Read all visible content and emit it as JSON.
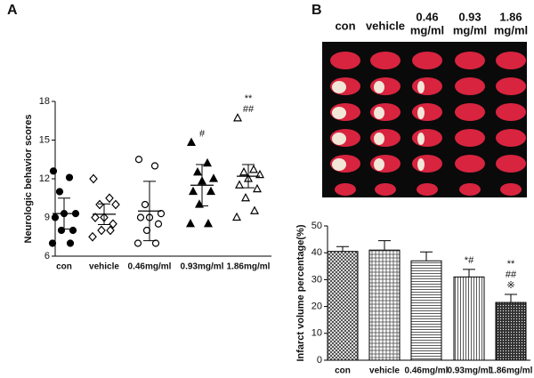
{
  "panel_labels": [
    "A",
    "B"
  ],
  "photo": {
    "column_labels": [
      [
        "con"
      ],
      [
        "vehicle"
      ],
      [
        "0.46",
        "mg/ml"
      ],
      [
        "0.93",
        "mg/ml"
      ],
      [
        "1.86",
        "mg/ml"
      ]
    ]
  },
  "chart_data": [
    {
      "type": "dot-plot",
      "y_label": "Neurologic behavior scores",
      "categories": [
        "con",
        "vehicle",
        "0.46mg/ml",
        "0.93mg/ml",
        "1.86mg/ml"
      ],
      "groups": [
        {
          "marker": "filled-circle",
          "values": [
            12.6,
            12.1,
            11,
            9.3,
            9.3,
            9,
            8,
            8,
            7,
            7
          ],
          "mean": 9.3,
          "sd": 1.2
        },
        {
          "marker": "open-diamond",
          "values": [
            12,
            10.5,
            10,
            10,
            9,
            9,
            8.5,
            8,
            8,
            7.5
          ],
          "mean": 9.25,
          "sd": 0.8
        },
        {
          "marker": "open-circle",
          "values": [
            13.5,
            13,
            10,
            9.3,
            9,
            9,
            8.5,
            8,
            7,
            7
          ],
          "mean": 9.5,
          "sd": 2.3
        },
        {
          "marker": "filled-triangle",
          "values": [
            14.8,
            13.2,
            12.5,
            12,
            11.8,
            11,
            11,
            10,
            8.5,
            8.5
          ],
          "mean": 11.5,
          "sd": 1.6
        },
        {
          "marker": "open-triangle",
          "values": [
            16.7,
            12.7,
            12.5,
            12.3,
            12,
            11.5,
            11.2,
            10.5,
            9.5,
            9
          ],
          "mean": 12.2,
          "sd": 0.9
        }
      ],
      "annotations": [
        null,
        null,
        null,
        [
          "#"
        ],
        [
          "**",
          "##"
        ]
      ],
      "ylim": [
        6,
        18
      ],
      "yticks": [
        6,
        9,
        12,
        15,
        18
      ]
    },
    {
      "type": "bar",
      "y_label": "Infarct volume percentage(%)",
      "categories": [
        "con",
        "vehicle",
        "0.46mg/ml",
        "0.93mg/ml",
        "1.86mg/ml"
      ],
      "values": [
        40.5,
        41,
        37,
        31,
        21.5
      ],
      "errors": [
        1.8,
        3.5,
        3.3,
        2.8,
        3
      ],
      "annotations": [
        null,
        null,
        null,
        [
          "*#"
        ],
        [
          "**",
          "##",
          "※"
        ]
      ],
      "ylim": [
        0,
        50
      ],
      "yticks": [
        0,
        10,
        20,
        30,
        40,
        50
      ]
    }
  ]
}
